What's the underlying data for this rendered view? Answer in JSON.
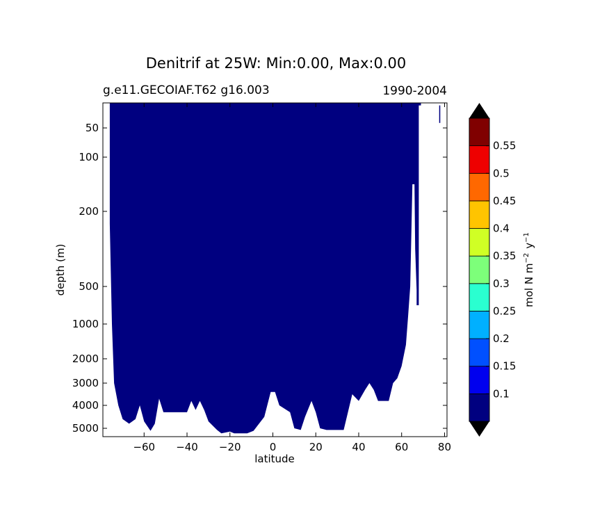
{
  "chart_data": {
    "type": "heatmap",
    "title": "Denitrif at 25W: Min:0.00, Max:0.00",
    "subtitle_left": "g.e11.GECOIAF.T62 g16.003",
    "subtitle_right": "1990-2004",
    "xlabel": "latitude",
    "ylabel": "depth (m)",
    "x_ticks": [
      -60,
      -40,
      -20,
      0,
      20,
      40,
      60,
      80
    ],
    "x_tick_labels": [
      "−60",
      "−40",
      "−20",
      "0",
      "20",
      "40",
      "60",
      "80"
    ],
    "y_ticks": [
      50,
      100,
      200,
      500,
      1000,
      2000,
      3000,
      4000,
      5000
    ],
    "y_tick_labels": [
      "50",
      "100",
      "200",
      "500",
      "1000",
      "2000",
      "3000",
      "4000",
      "5000"
    ],
    "y_axis_inverted": true,
    "xlim": [
      -80,
      81
    ],
    "field_value": 0.0,
    "field_color": "#000080",
    "ocean_bottom_profile": [
      {
        "lat": -76,
        "depth": 5
      },
      {
        "lat": -76,
        "depth": 250
      },
      {
        "lat": -75,
        "depth": 1000
      },
      {
        "lat": -74,
        "depth": 3000
      },
      {
        "lat": -72,
        "depth": 4000
      },
      {
        "lat": -70,
        "depth": 4600
      },
      {
        "lat": -67,
        "depth": 4800
      },
      {
        "lat": -64,
        "depth": 4600
      },
      {
        "lat": -62,
        "depth": 4000
      },
      {
        "lat": -60,
        "depth": 4700
      },
      {
        "lat": -57,
        "depth": 5300
      },
      {
        "lat": -55,
        "depth": 4800
      },
      {
        "lat": -53,
        "depth": 3700
      },
      {
        "lat": -51,
        "depth": 4300
      },
      {
        "lat": -40,
        "depth": 4300
      },
      {
        "lat": -38,
        "depth": 3800
      },
      {
        "lat": -36,
        "depth": 4200
      },
      {
        "lat": -34,
        "depth": 3800
      },
      {
        "lat": -32,
        "depth": 4200
      },
      {
        "lat": -30,
        "depth": 4700
      },
      {
        "lat": -26,
        "depth": 5200
      },
      {
        "lat": -24,
        "depth": 5600
      },
      {
        "lat": -20,
        "depth": 5400
      },
      {
        "lat": -18,
        "depth": 5600
      },
      {
        "lat": -12,
        "depth": 5600
      },
      {
        "lat": -9,
        "depth": 5300
      },
      {
        "lat": -4,
        "depth": 4500
      },
      {
        "lat": -1,
        "depth": 3400
      },
      {
        "lat": 1,
        "depth": 3400
      },
      {
        "lat": 3,
        "depth": 4000
      },
      {
        "lat": 8,
        "depth": 4300
      },
      {
        "lat": 10,
        "depth": 5000
      },
      {
        "lat": 13,
        "depth": 5200
      },
      {
        "lat": 15,
        "depth": 4500
      },
      {
        "lat": 18,
        "depth": 3800
      },
      {
        "lat": 20,
        "depth": 4300
      },
      {
        "lat": 22,
        "depth": 5000
      },
      {
        "lat": 25,
        "depth": 5200
      },
      {
        "lat": 33,
        "depth": 5200
      },
      {
        "lat": 35,
        "depth": 4300
      },
      {
        "lat": 37,
        "depth": 3500
      },
      {
        "lat": 40,
        "depth": 3800
      },
      {
        "lat": 43,
        "depth": 3300
      },
      {
        "lat": 45,
        "depth": 3000
      },
      {
        "lat": 47,
        "depth": 3300
      },
      {
        "lat": 49,
        "depth": 3800
      },
      {
        "lat": 54,
        "depth": 3800
      },
      {
        "lat": 56,
        "depth": 3000
      },
      {
        "lat": 58,
        "depth": 2800
      },
      {
        "lat": 60,
        "depth": 2300
      },
      {
        "lat": 62,
        "depth": 1600
      },
      {
        "lat": 63,
        "depth": 900
      },
      {
        "lat": 64,
        "depth": 500
      },
      {
        "lat": 65,
        "depth": 150
      },
      {
        "lat": 66,
        "depth": 150
      },
      {
        "lat": 66.3,
        "depth": 350
      },
      {
        "lat": 67,
        "depth": 550
      },
      {
        "lat": 67,
        "depth": 750
      },
      {
        "lat": 68,
        "depth": 750
      },
      {
        "lat": 68,
        "depth": 5
      },
      {
        "lat": 69,
        "depth": 5
      }
    ],
    "isolated_bars": [
      {
        "lat_min": 77.5,
        "lat_max": 78,
        "depth_min": 5,
        "depth_max": 40
      }
    ],
    "colorbar": {
      "label": "mol N m⁻² y⁻¹",
      "label_base": "mol N m",
      "label_exp1": "−2",
      "label_mid": "y",
      "label_exp2": "−1",
      "levels": [
        "0.1",
        "0.15",
        "0.2",
        "0.25",
        "0.3",
        "0.35",
        "0.4",
        "0.45",
        "0.5",
        "0.55"
      ],
      "colors": [
        "#000080",
        "#0000ee",
        "#0050ff",
        "#00b0ff",
        "#2affd0",
        "#7dff7a",
        "#d0ff25",
        "#ffc400",
        "#ff6800",
        "#ee0000",
        "#800000"
      ],
      "under_color": "#000000",
      "over_color": "#000000",
      "extend": "both"
    }
  }
}
